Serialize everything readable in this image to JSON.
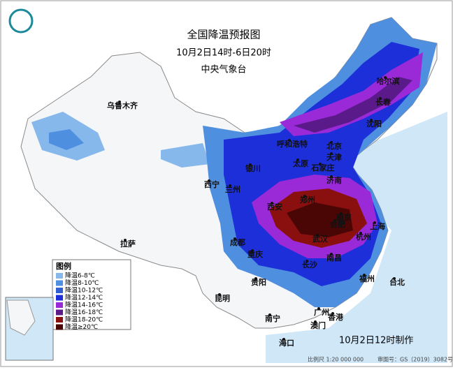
{
  "header": {
    "title": "全国降温预报图",
    "period": "10月2日14时-6日20时",
    "issuer": "中央气象台"
  },
  "legend": {
    "title": "图例",
    "items": [
      {
        "label": "降温6-8℃",
        "color": "#86b8ec"
      },
      {
        "label": "降温8-10℃",
        "color": "#4f8fe0"
      },
      {
        "label": "降温10-12℃",
        "color": "#2f5fd0"
      },
      {
        "label": "降温12-14℃",
        "color": "#1d2fd8"
      },
      {
        "label": "降温14-16℃",
        "color": "#9a2ad8"
      },
      {
        "label": "降温16-18℃",
        "color": "#5a1a8a"
      },
      {
        "label": "降温18-20℃",
        "color": "#8a1010"
      },
      {
        "label": "降温≥20℃",
        "color": "#4a0505"
      }
    ]
  },
  "cities": [
    "乌鲁木齐",
    "哈尔滨",
    "长春",
    "沈阳",
    "呼和浩特",
    "北京",
    "天津",
    "石家庄",
    "太原",
    "银川",
    "济南",
    "西宁",
    "兰州",
    "郑州",
    "西安",
    "合肥",
    "南京",
    "上海",
    "杭州",
    "成都",
    "武汉",
    "重庆",
    "长沙",
    "南昌",
    "拉萨",
    "福州",
    "台北",
    "贵阳",
    "昆明",
    "南宁",
    "广州",
    "香港",
    "澳门",
    "海口"
  ],
  "footer": {
    "made": "10月2日12时制作",
    "scale": "比例尺 1:20 000 000",
    "approval": "审图号：GS（2019）3082号"
  }
}
